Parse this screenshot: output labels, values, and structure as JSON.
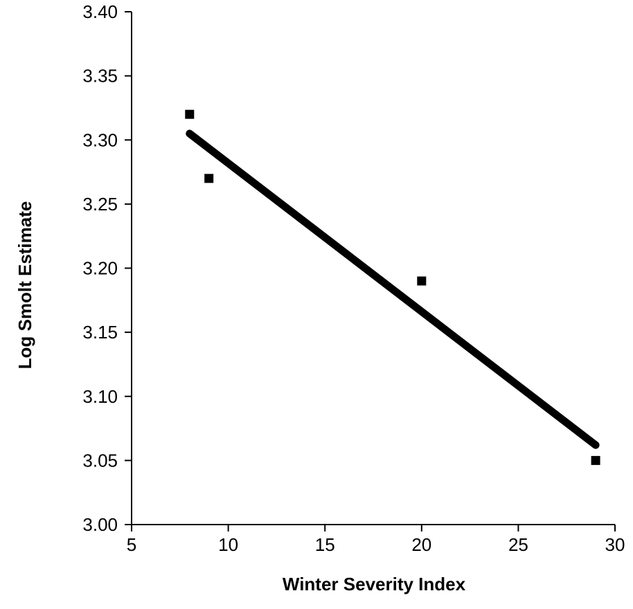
{
  "chart_data": {
    "type": "scatter",
    "title": "",
    "xlabel": "Winter Severity Index",
    "ylabel": "Log Smolt Estimate",
    "xlim": [
      5,
      30
    ],
    "ylim": [
      3.0,
      3.4
    ],
    "xticks": [
      5,
      10,
      15,
      20,
      25,
      30
    ],
    "yticks": [
      3.0,
      3.05,
      3.1,
      3.15,
      3.2,
      3.25,
      3.3,
      3.35,
      3.4
    ],
    "xtick_labels": [
      "5",
      "10",
      "15",
      "20",
      "25",
      "30"
    ],
    "ytick_labels": [
      "3.00",
      "3.05",
      "3.10",
      "3.15",
      "3.20",
      "3.25",
      "3.30",
      "3.35",
      "3.40"
    ],
    "grid": false,
    "legend": "none",
    "series": [
      {
        "type": "scatter",
        "marker": "square",
        "color": "#000000",
        "points": [
          {
            "x": 8,
            "y": 3.32
          },
          {
            "x": 9,
            "y": 3.27
          },
          {
            "x": 20,
            "y": 3.19
          },
          {
            "x": 29,
            "y": 3.05
          }
        ]
      },
      {
        "type": "line",
        "color": "#000000",
        "points": [
          {
            "x": 8,
            "y": 3.305
          },
          {
            "x": 29,
            "y": 3.062
          }
        ]
      }
    ]
  }
}
